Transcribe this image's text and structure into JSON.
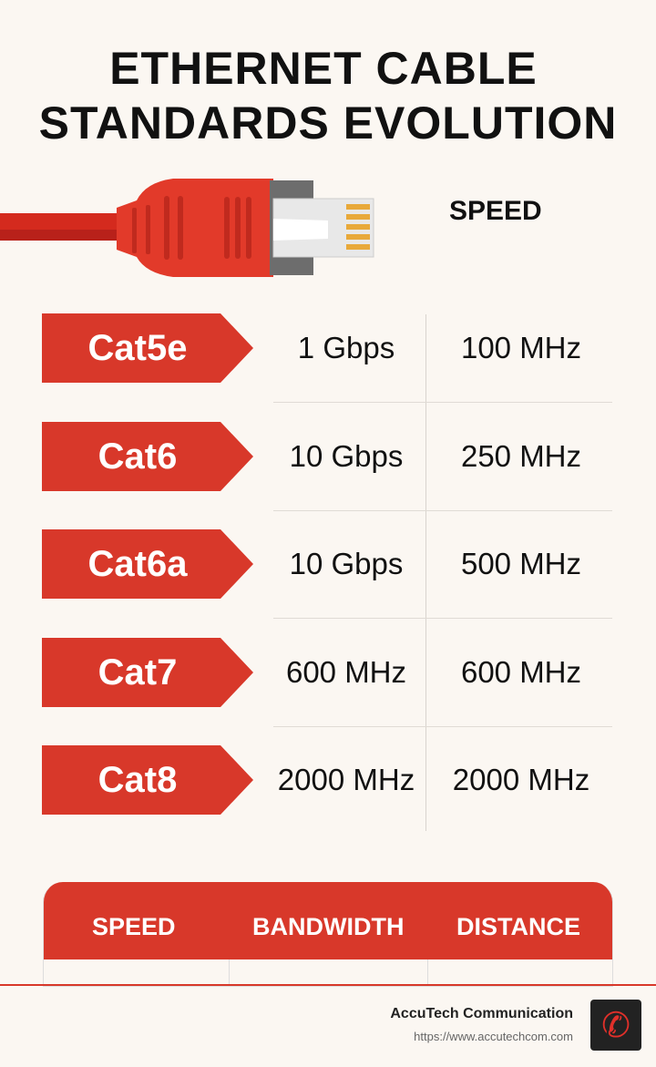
{
  "title": {
    "line1": "ETHERNET CABLE",
    "line2": "STANDARDS EVOLUTION"
  },
  "speed_header": "SPEED",
  "rows": [
    {
      "category": "Cat5e",
      "col1": "1 Gbps",
      "col2": "100 MHz"
    },
    {
      "category": "Cat6",
      "col1": "10 Gbps",
      "col2": "250 MHz"
    },
    {
      "category": "Cat6a",
      "col1": "10 Gbps",
      "col2": "500 MHz"
    },
    {
      "category": "Cat7",
      "col1": "600 MHz",
      "col2": "600 MHz"
    },
    {
      "category": "Cat8",
      "col1": "2000 MHz",
      "col2": "2000 MHz"
    }
  ],
  "bottom_table": {
    "headers": [
      "SPEED",
      "BANDWIDTH",
      "DISTANCE"
    ]
  },
  "footer": {
    "brand": "AccuTech Communication",
    "url": "https://www.accutechcom.com",
    "icon": "phone-icon"
  },
  "colors": {
    "accent": "#d8382a",
    "background": "#fbf7f2"
  }
}
